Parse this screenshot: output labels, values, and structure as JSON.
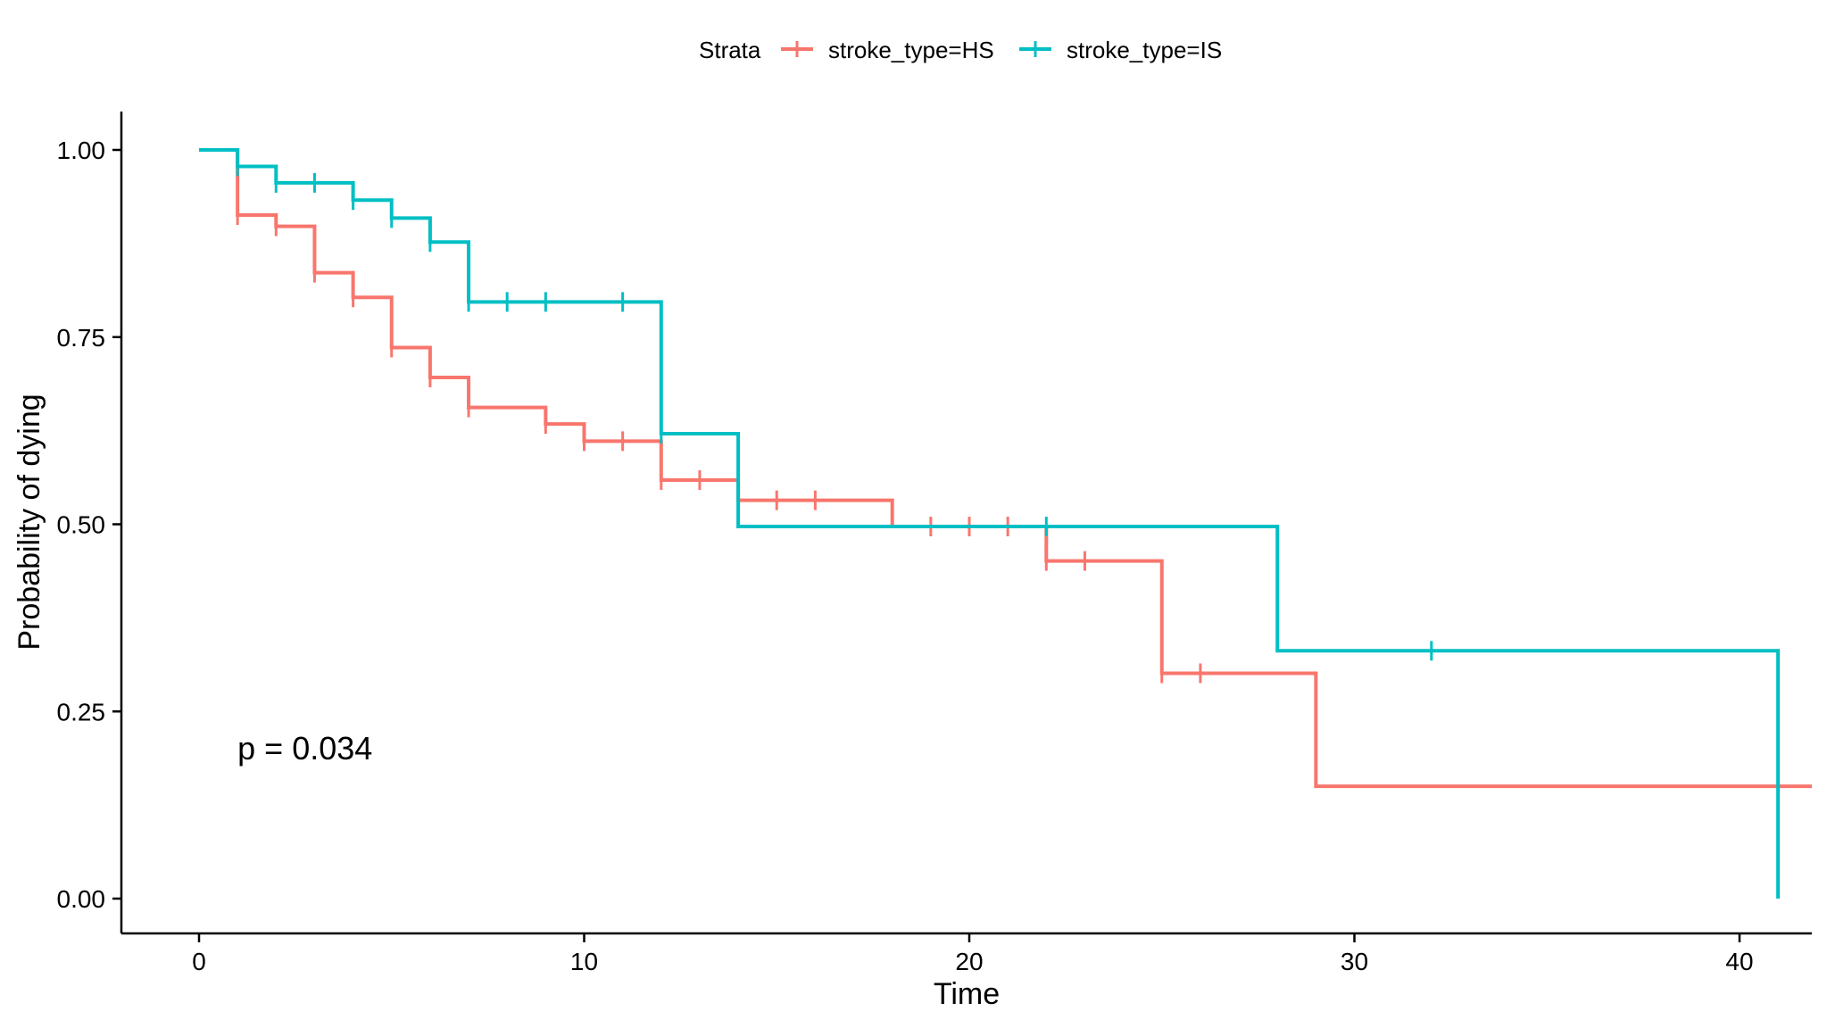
{
  "chart_data": {
    "type": "line",
    "subtype": "step",
    "title": "",
    "xlabel": "Time",
    "ylabel": "Probability of dying",
    "xlim": [
      -2,
      42
    ],
    "ylim": [
      -0.05,
      1.05
    ],
    "x_ticks": [
      0,
      10,
      20,
      30,
      40
    ],
    "x_tick_labels": [
      "0",
      "10",
      "20",
      "30",
      "40"
    ],
    "y_ticks": [
      0,
      0.25,
      0.5,
      0.75,
      1.0
    ],
    "y_tick_labels": [
      "0.00",
      "0.25",
      "0.50",
      "0.75",
      "1.00"
    ],
    "grid": false,
    "legend": {
      "position": "top",
      "title": "Strata",
      "entries": [
        "stroke_type=HS",
        "stroke_type=IS"
      ]
    },
    "annotation": {
      "text": "p = 0.034",
      "x": 1,
      "y": 0.2
    },
    "series": [
      {
        "name": "stroke_type=HS",
        "color": "#F8766D",
        "steps": [
          {
            "x": 0,
            "y": 1.0
          },
          {
            "x": 1,
            "y": 0.913
          },
          {
            "x": 2,
            "y": 0.898
          },
          {
            "x": 3,
            "y": 0.836
          },
          {
            "x": 4,
            "y": 0.803
          },
          {
            "x": 5,
            "y": 0.736
          },
          {
            "x": 6,
            "y": 0.696
          },
          {
            "x": 7,
            "y": 0.656
          },
          {
            "x": 9,
            "y": 0.634
          },
          {
            "x": 10,
            "y": 0.611
          },
          {
            "x": 12,
            "y": 0.559
          },
          {
            "x": 14,
            "y": 0.532
          },
          {
            "x": 18,
            "y": 0.497
          },
          {
            "x": 22,
            "y": 0.451
          },
          {
            "x": 25,
            "y": 0.301
          },
          {
            "x": 29,
            "y": 0.15
          }
        ],
        "end_x": 42,
        "censored": [
          {
            "x": 1,
            "y": 0.913
          },
          {
            "x": 2,
            "y": 0.898
          },
          {
            "x": 3,
            "y": 0.836
          },
          {
            "x": 4,
            "y": 0.803
          },
          {
            "x": 5,
            "y": 0.736
          },
          {
            "x": 6,
            "y": 0.696
          },
          {
            "x": 7,
            "y": 0.656
          },
          {
            "x": 9,
            "y": 0.634
          },
          {
            "x": 10,
            "y": 0.611
          },
          {
            "x": 11,
            "y": 0.611
          },
          {
            "x": 12,
            "y": 0.559
          },
          {
            "x": 13,
            "y": 0.559
          },
          {
            "x": 15,
            "y": 0.532
          },
          {
            "x": 16,
            "y": 0.532
          },
          {
            "x": 19,
            "y": 0.497
          },
          {
            "x": 20,
            "y": 0.497
          },
          {
            "x": 21,
            "y": 0.497
          },
          {
            "x": 22,
            "y": 0.451
          },
          {
            "x": 23,
            "y": 0.451
          },
          {
            "x": 25,
            "y": 0.301
          },
          {
            "x": 26,
            "y": 0.301
          }
        ]
      },
      {
        "name": "stroke_type=IS",
        "color": "#00BFC4",
        "steps": [
          {
            "x": 0,
            "y": 1.0
          },
          {
            "x": 1,
            "y": 0.978
          },
          {
            "x": 2,
            "y": 0.956
          },
          {
            "x": 4,
            "y": 0.933
          },
          {
            "x": 5,
            "y": 0.909
          },
          {
            "x": 6,
            "y": 0.877
          },
          {
            "x": 7,
            "y": 0.797
          },
          {
            "x": 12,
            "y": 0.621
          },
          {
            "x": 14,
            "y": 0.497
          },
          {
            "x": 28,
            "y": 0.331
          },
          {
            "x": 41,
            "y": 0.0
          }
        ],
        "end_x": 41,
        "censored": [
          {
            "x": 1,
            "y": 0.978
          },
          {
            "x": 2,
            "y": 0.956
          },
          {
            "x": 3,
            "y": 0.956
          },
          {
            "x": 4,
            "y": 0.933
          },
          {
            "x": 5,
            "y": 0.909
          },
          {
            "x": 6,
            "y": 0.877
          },
          {
            "x": 7,
            "y": 0.797
          },
          {
            "x": 8,
            "y": 0.797
          },
          {
            "x": 9,
            "y": 0.797
          },
          {
            "x": 11,
            "y": 0.797
          },
          {
            "x": 12,
            "y": 0.621
          },
          {
            "x": 22,
            "y": 0.497
          },
          {
            "x": 32,
            "y": 0.331
          }
        ]
      }
    ]
  }
}
